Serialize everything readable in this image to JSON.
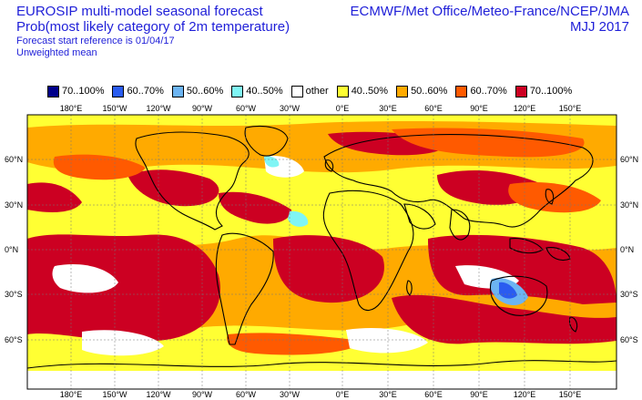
{
  "header": {
    "title_line1": "EUROSIP multi-model seasonal forecast",
    "title_line2": "Prob(most likely category of 2m temperature)",
    "forecast_ref": "Forecast start reference is 01/04/17",
    "weighting": "Unweighted mean",
    "centres": "ECMWF/Met Office/Meteo-France/NCEP/JMA",
    "period": "MJJ 2017"
  },
  "legend": [
    {
      "label": "70..100%",
      "color": "#00008b"
    },
    {
      "label": "60..70%",
      "color": "#2a5cf0"
    },
    {
      "label": "50..60%",
      "color": "#6cb4f2"
    },
    {
      "label": "40..50%",
      "color": "#7ff5f5"
    },
    {
      "label": "other",
      "color": "#ffffff"
    },
    {
      "label": "40..50%",
      "color": "#ffff33"
    },
    {
      "label": "50..60%",
      "color": "#ffaa00"
    },
    {
      "label": "60..70%",
      "color": "#ff5a00"
    },
    {
      "label": "70..100%",
      "color": "#cc0022"
    }
  ],
  "axes": {
    "longitude_labels": [
      "180°E",
      "150°W",
      "120°W",
      "90°W",
      "60°W",
      "30°W",
      "0°E",
      "30°E",
      "60°E",
      "90°E",
      "120°E",
      "150°E"
    ],
    "latitude_labels": [
      "60°N",
      "30°N",
      "0°N",
      "30°S",
      "60°S"
    ]
  }
}
